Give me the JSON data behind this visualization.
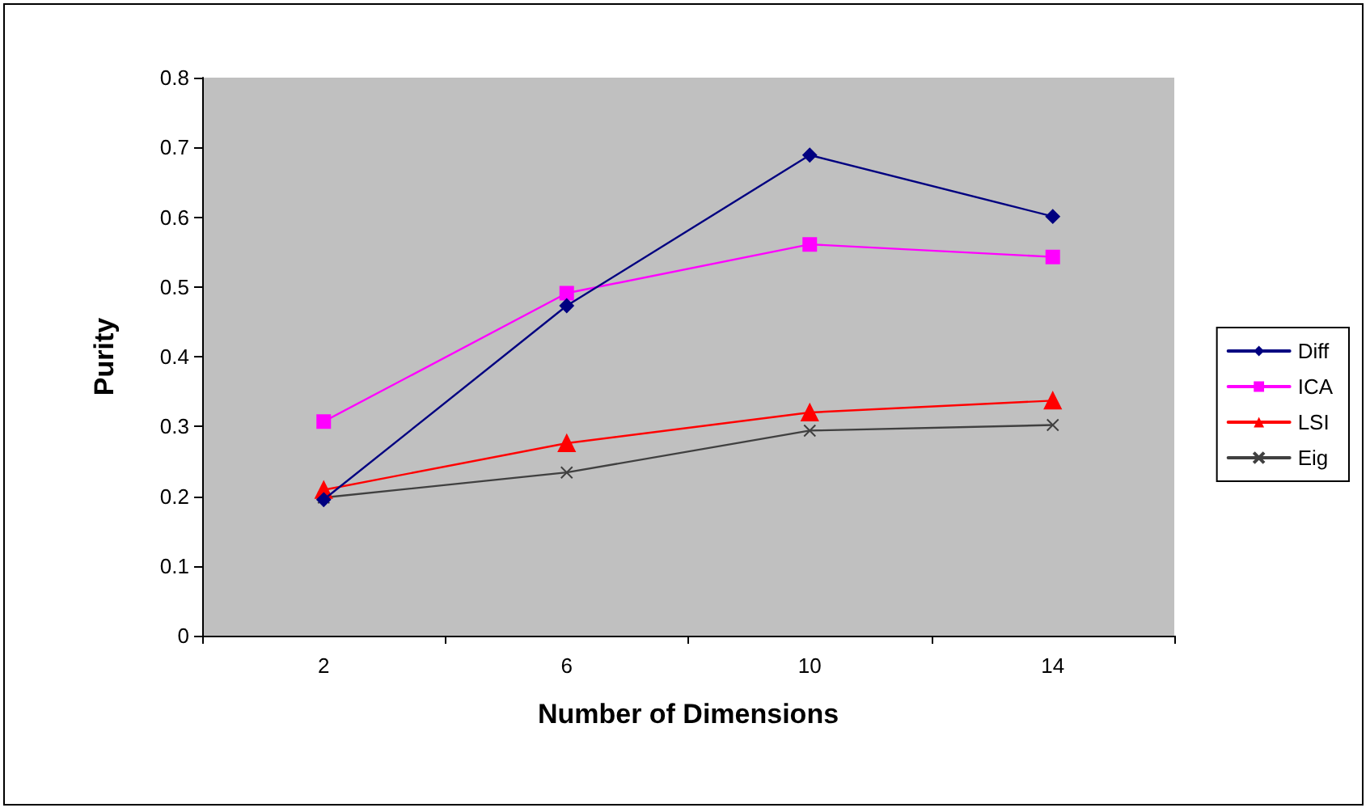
{
  "chart_data": {
    "type": "line",
    "xlabel": "Number of Dimensions",
    "ylabel": "Purity",
    "categories": [
      "2",
      "6",
      "10",
      "14"
    ],
    "series": [
      {
        "name": "Diff",
        "color": "#000080",
        "marker": "diamond",
        "values": [
          0.195,
          0.473,
          0.689,
          0.601
        ]
      },
      {
        "name": "ICA",
        "color": "#ff00ff",
        "marker": "square",
        "values": [
          0.307,
          0.491,
          0.561,
          0.543
        ]
      },
      {
        "name": "LSI",
        "color": "#ff0000",
        "marker": "triangle",
        "values": [
          0.209,
          0.276,
          0.32,
          0.337
        ]
      },
      {
        "name": "Eig",
        "color": "#404040",
        "marker": "cross",
        "values": [
          0.198,
          0.234,
          0.294,
          0.302
        ]
      }
    ],
    "ylim": [
      0,
      0.8
    ],
    "yticks": [
      0,
      0.1,
      0.2,
      0.3,
      0.4,
      0.5,
      0.6,
      0.7,
      0.8
    ],
    "grid": false,
    "legend": "right",
    "line_style": "solid"
  }
}
